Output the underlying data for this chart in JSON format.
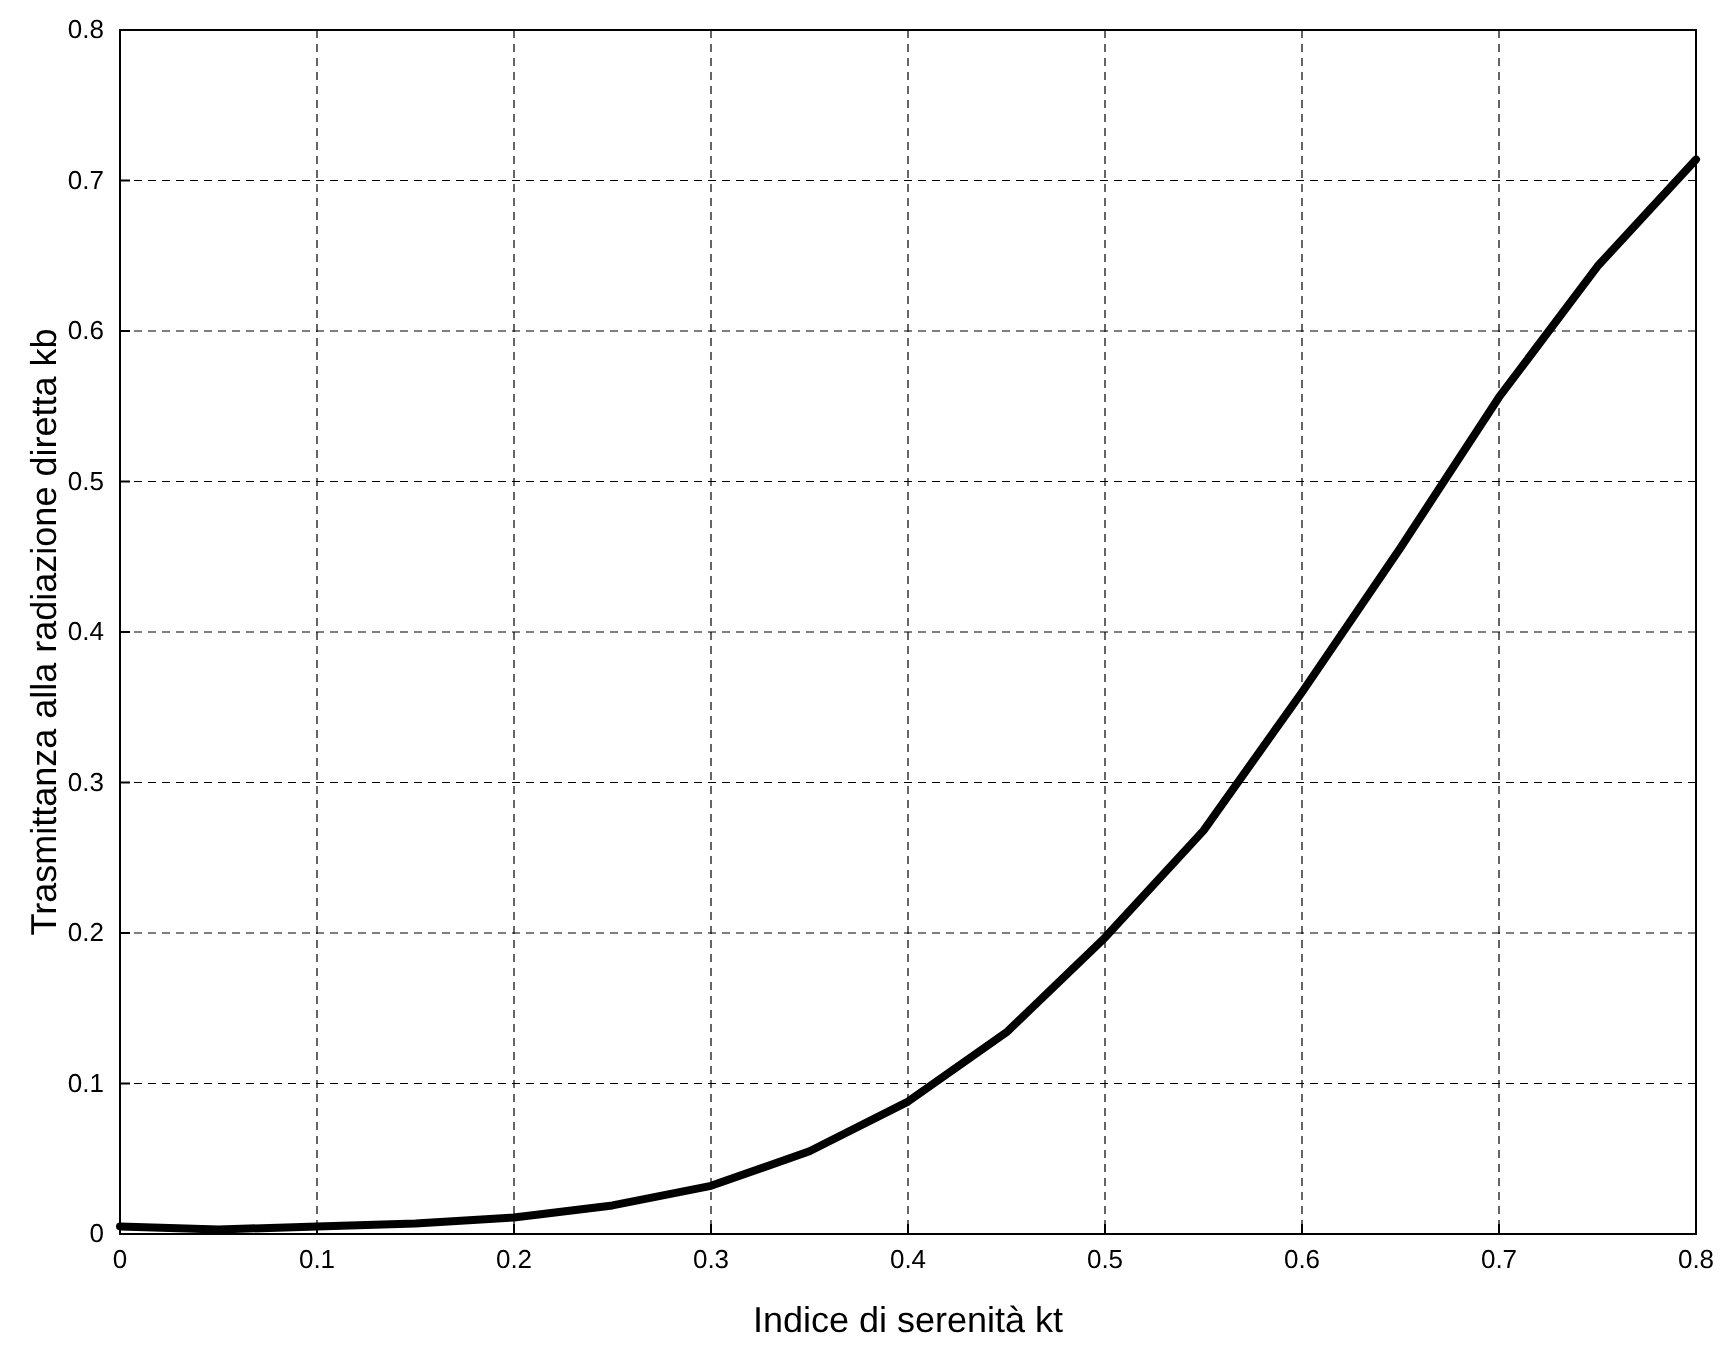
{
  "chart_data": {
    "type": "line",
    "xlabel": "Indice di serenità kt",
    "ylabel": "Trasmittanza alla radiazione diretta kb",
    "x": [
      0,
      0.05,
      0.1,
      0.15,
      0.2,
      0.25,
      0.3,
      0.35,
      0.4,
      0.45,
      0.5,
      0.55,
      0.6,
      0.65,
      0.7,
      0.75,
      0.8
    ],
    "series": [
      {
        "color": "#000000",
        "values": [
          0.005,
          0.003,
          0.005,
          0.007,
          0.011,
          0.019,
          0.032,
          0.055,
          0.088,
          0.134,
          0.197,
          0.268,
          0.36,
          0.456,
          0.556,
          0.643,
          0.714
        ]
      }
    ],
    "xlim": [
      0,
      0.8
    ],
    "ylim": [
      0,
      0.8
    ],
    "xticks": [
      0,
      0.1,
      0.2,
      0.3,
      0.4,
      0.5,
      0.6,
      0.7,
      0.8
    ],
    "yticks": [
      0,
      0.1,
      0.2,
      0.3,
      0.4,
      0.5,
      0.6,
      0.7,
      0.8
    ],
    "grid": true,
    "line_style": "solid"
  }
}
